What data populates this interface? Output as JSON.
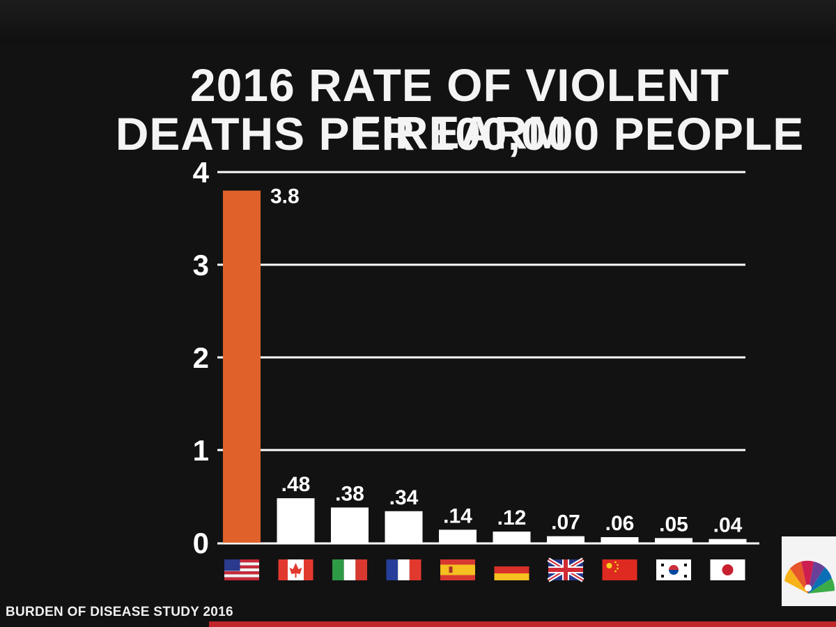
{
  "title_line1": "2016 RATE OF VIOLENT FIREARM",
  "title_line2": "DEATHS PER 100,000 PEOPLE",
  "source": "BURDEN OF DISEASE STUDY 2016",
  "colors": {
    "highlight_bar": "#e0622a",
    "bar": "#ffffff",
    "gridline": "#ffffff",
    "background": "#121212",
    "accent_strip": "#c0262a"
  },
  "chart_data": {
    "type": "bar",
    "title": "2016 RATE OF VIOLENT FIREARM DEATHS PER 100,000 PEOPLE",
    "categories": [
      "United States",
      "Canada",
      "Italy",
      "France",
      "Spain",
      "Germany",
      "United Kingdom",
      "China",
      "South Korea",
      "Japan"
    ],
    "category_icons": [
      "us-flag-icon",
      "canada-flag-icon",
      "italy-flag-icon",
      "france-flag-icon",
      "spain-flag-icon",
      "germany-flag-icon",
      "uk-flag-icon",
      "china-flag-icon",
      "south-korea-flag-icon",
      "japan-flag-icon"
    ],
    "values": [
      3.8,
      0.48,
      0.38,
      0.34,
      0.14,
      0.12,
      0.07,
      0.06,
      0.05,
      0.04
    ],
    "data_labels": [
      "3.8",
      ".48",
      ".38",
      ".34",
      ".14",
      ".12",
      ".07",
      ".06",
      ".05",
      ".04"
    ],
    "highlight_index": 0,
    "ylim": [
      0,
      4
    ],
    "yticks": [
      0,
      1,
      2,
      3,
      4
    ],
    "ytick_labels": [
      "0",
      "1",
      "2",
      "3",
      "4"
    ],
    "grid": true,
    "legend": "none",
    "xlabel": "",
    "ylabel": ""
  }
}
